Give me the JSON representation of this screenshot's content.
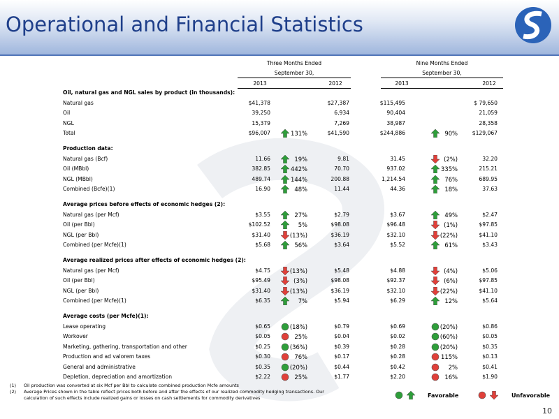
{
  "header": {
    "title": "Operational and Financial Statistics"
  },
  "table": {
    "groups": [
      {
        "title": "Three Months Ended",
        "subtitle": "September 30,",
        "years": [
          "2013",
          "2012"
        ]
      },
      {
        "title": "Nine Months Ended",
        "subtitle": "September 30,",
        "years": [
          "2013",
          "2012"
        ]
      }
    ],
    "sections": [
      {
        "title": "Oil, natural gas and NGL sales by product (in thousands):",
        "marker": "arrow",
        "rows": [
          [
            "Natural gas",
            "$41,378",
            null,
            "$27,387",
            "$115,495",
            null,
            "$ 79,650"
          ],
          [
            "Oil",
            "39,250",
            null,
            "6,934",
            "90,404",
            null,
            "21,059"
          ],
          [
            "NGL",
            "15,379",
            null,
            "7,269",
            "38,987",
            null,
            "28,358"
          ],
          [
            "Total",
            "$96,007",
            "131%",
            "$41,590",
            "$244,886",
            "90%",
            "$129,067"
          ]
        ]
      },
      {
        "title": "Production data:",
        "marker": "arrow",
        "rows": [
          [
            "Natural gas (Bcf)",
            "11.66",
            "19%",
            "9.81",
            "31.45",
            "(2%)",
            "32.20"
          ],
          [
            "Oil (MBbl)",
            "382.85",
            "442%",
            "70.70",
            "937.02",
            "335%",
            "215.21"
          ],
          [
            "NGL (MBbl)",
            "489.74",
            "144%",
            "200.88",
            "1,214.54",
            "76%",
            "689.95"
          ],
          [
            "Combined (Bcfe)(1)",
            "16.90",
            "48%",
            "11.44",
            "44.36",
            "18%",
            "37.63"
          ]
        ]
      },
      {
        "title": "Average prices before effects of economic hedges (2):",
        "marker": "arrow",
        "rows": [
          [
            "Natural gas (per Mcf)",
            "$3.55",
            "27%",
            "$2.79",
            "$3.67",
            "49%",
            "$2.47"
          ],
          [
            "Oil (per Bbl)",
            "$102.52",
            "5%",
            "$98.08",
            "$96.48",
            "(1%)",
            "$97.85"
          ],
          [
            "NGL (per Bbl)",
            "$31.40",
            "(13%)",
            "$36.19",
            "$32.10",
            "(22%)",
            "$41.10"
          ],
          [
            "Combined (per Mcfe)(1)",
            "$5.68",
            "56%",
            "$3.64",
            "$5.52",
            "61%",
            "$3.43"
          ]
        ]
      },
      {
        "title": "Average realized prices after effects of economic hedges (2):",
        "marker": "arrow",
        "rows": [
          [
            "Natural gas (per Mcf)",
            "$4.75",
            "(13%)",
            "$5.48",
            "$4.88",
            "(4%)",
            "$5.06"
          ],
          [
            "Oil (per Bbl)",
            "$95.49",
            "(3%)",
            "$98.08",
            "$92.37",
            "(6%)",
            "$97.85"
          ],
          [
            "NGL (per Bbl)",
            "$31.40",
            "(13%)",
            "$36.19",
            "$32.10",
            "(22%)",
            "$41.10"
          ],
          [
            "Combined (per Mcfe)(1)",
            "$6.35",
            "7%",
            "$5.94",
            "$6.29",
            "12%",
            "$5.64"
          ]
        ]
      },
      {
        "title": "Average costs (per Mcfe)(1):",
        "marker": "circle",
        "rows": [
          [
            "Lease operating",
            "$0.65",
            "(18%)",
            "$0.79",
            "$0.69",
            "(20%)",
            "$0.86"
          ],
          [
            "Workover",
            "$0.05",
            "25%",
            "$0.04",
            "$0.02",
            "(60%)",
            "$0.05"
          ],
          [
            "Marketing, gathering, transportation and other",
            "$0.25",
            "(36%)",
            "$0.39",
            "$0.28",
            "(20%)",
            "$0.35"
          ],
          [
            "Production and ad valorem taxes",
            "$0.30",
            "76%",
            "$0.17",
            "$0.28",
            "115%",
            "$0.13"
          ],
          [
            "General and administrative",
            "$0.35",
            "(20%)",
            "$0.44",
            "$0.42",
            "2%",
            "$0.41"
          ],
          [
            "Depletion, depreciation and amortization",
            "$2.22",
            "25%",
            "$1.77",
            "$2.20",
            "16%",
            "$1.90"
          ]
        ]
      }
    ]
  },
  "footnotes": [
    {
      "mark": "(1)",
      "text": "Oil production was converted at six Mcf per Bbl to calculate combined production Mcfe amounts"
    },
    {
      "mark": "(2)",
      "text": "Average Prices shown in the table reflect prices both before and after the effects of our realized commodity hedging transactions. Our calculation of such effects include realized gains or losses on cash settlements for commodity derivatives"
    }
  ],
  "legend": {
    "favorable": "Favorable",
    "unfavorable": "Unfavorable"
  },
  "page_number": "10"
}
